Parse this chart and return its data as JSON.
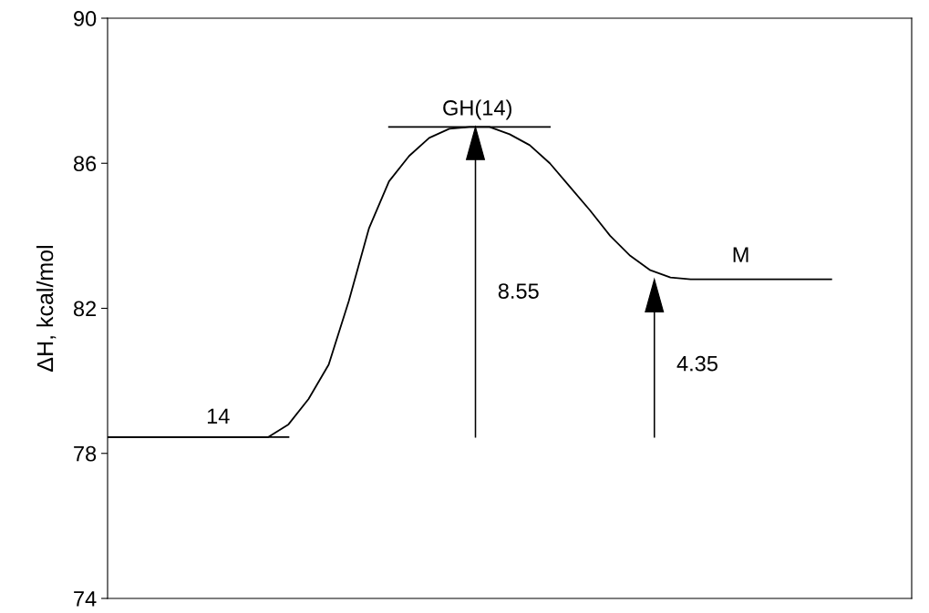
{
  "chart_data": {
    "type": "line",
    "ylabel": "ΔH, kcal/mol",
    "categories": [
      null,
      null,
      null,
      null,
      null,
      null,
      null,
      null,
      null,
      null,
      null,
      null,
      null,
      null,
      null,
      null,
      null,
      null,
      null,
      null,
      null,
      null,
      null,
      null,
      null,
      null,
      null,
      null,
      null,
      null,
      null,
      null,
      null,
      null,
      null,
      null,
      null,
      null,
      null,
      null,
      null
    ],
    "series": [
      {
        "color": "#000000",
        "values": [
          78.45,
          78.45,
          78.45,
          78.45,
          78.45,
          78.45,
          78.45,
          78.45,
          78.45,
          78.8,
          79.5,
          80.45,
          82.2,
          84.2,
          85.5,
          86.2,
          86.7,
          86.95,
          87.0,
          87.0,
          86.8,
          86.5,
          86.0,
          85.35,
          84.7,
          84.0,
          83.45,
          83.05,
          82.85,
          82.8,
          82.8,
          82.8,
          82.8,
          82.8,
          82.8,
          82.8,
          82.8,
          null,
          null,
          null,
          null
        ]
      },
      {
        "color": "#000000",
        "values": [
          78.45,
          78.45,
          78.45,
          78.45,
          78.45,
          78.45,
          78.45,
          78.45,
          78.45,
          78.45,
          null,
          null,
          null,
          null,
          87.0,
          87.0,
          87.0,
          87.0,
          87.0,
          87.0,
          87.0,
          87.0,
          87.0,
          null,
          null,
          null,
          null,
          null,
          null,
          null,
          null,
          null,
          null,
          null,
          null,
          null,
          null,
          null,
          null,
          null,
          null
        ]
      }
    ],
    "annotations": [
      "14",
      "GH(14)",
      "M",
      "8.55",
      "4.35"
    ],
    "ylim": [
      74,
      90
    ],
    "yticks": [
      74,
      78,
      82,
      86,
      90
    ],
    "tick_labels": "y",
    "grid": false,
    "legend": false,
    "marker": "none",
    "line_style": "solid"
  }
}
